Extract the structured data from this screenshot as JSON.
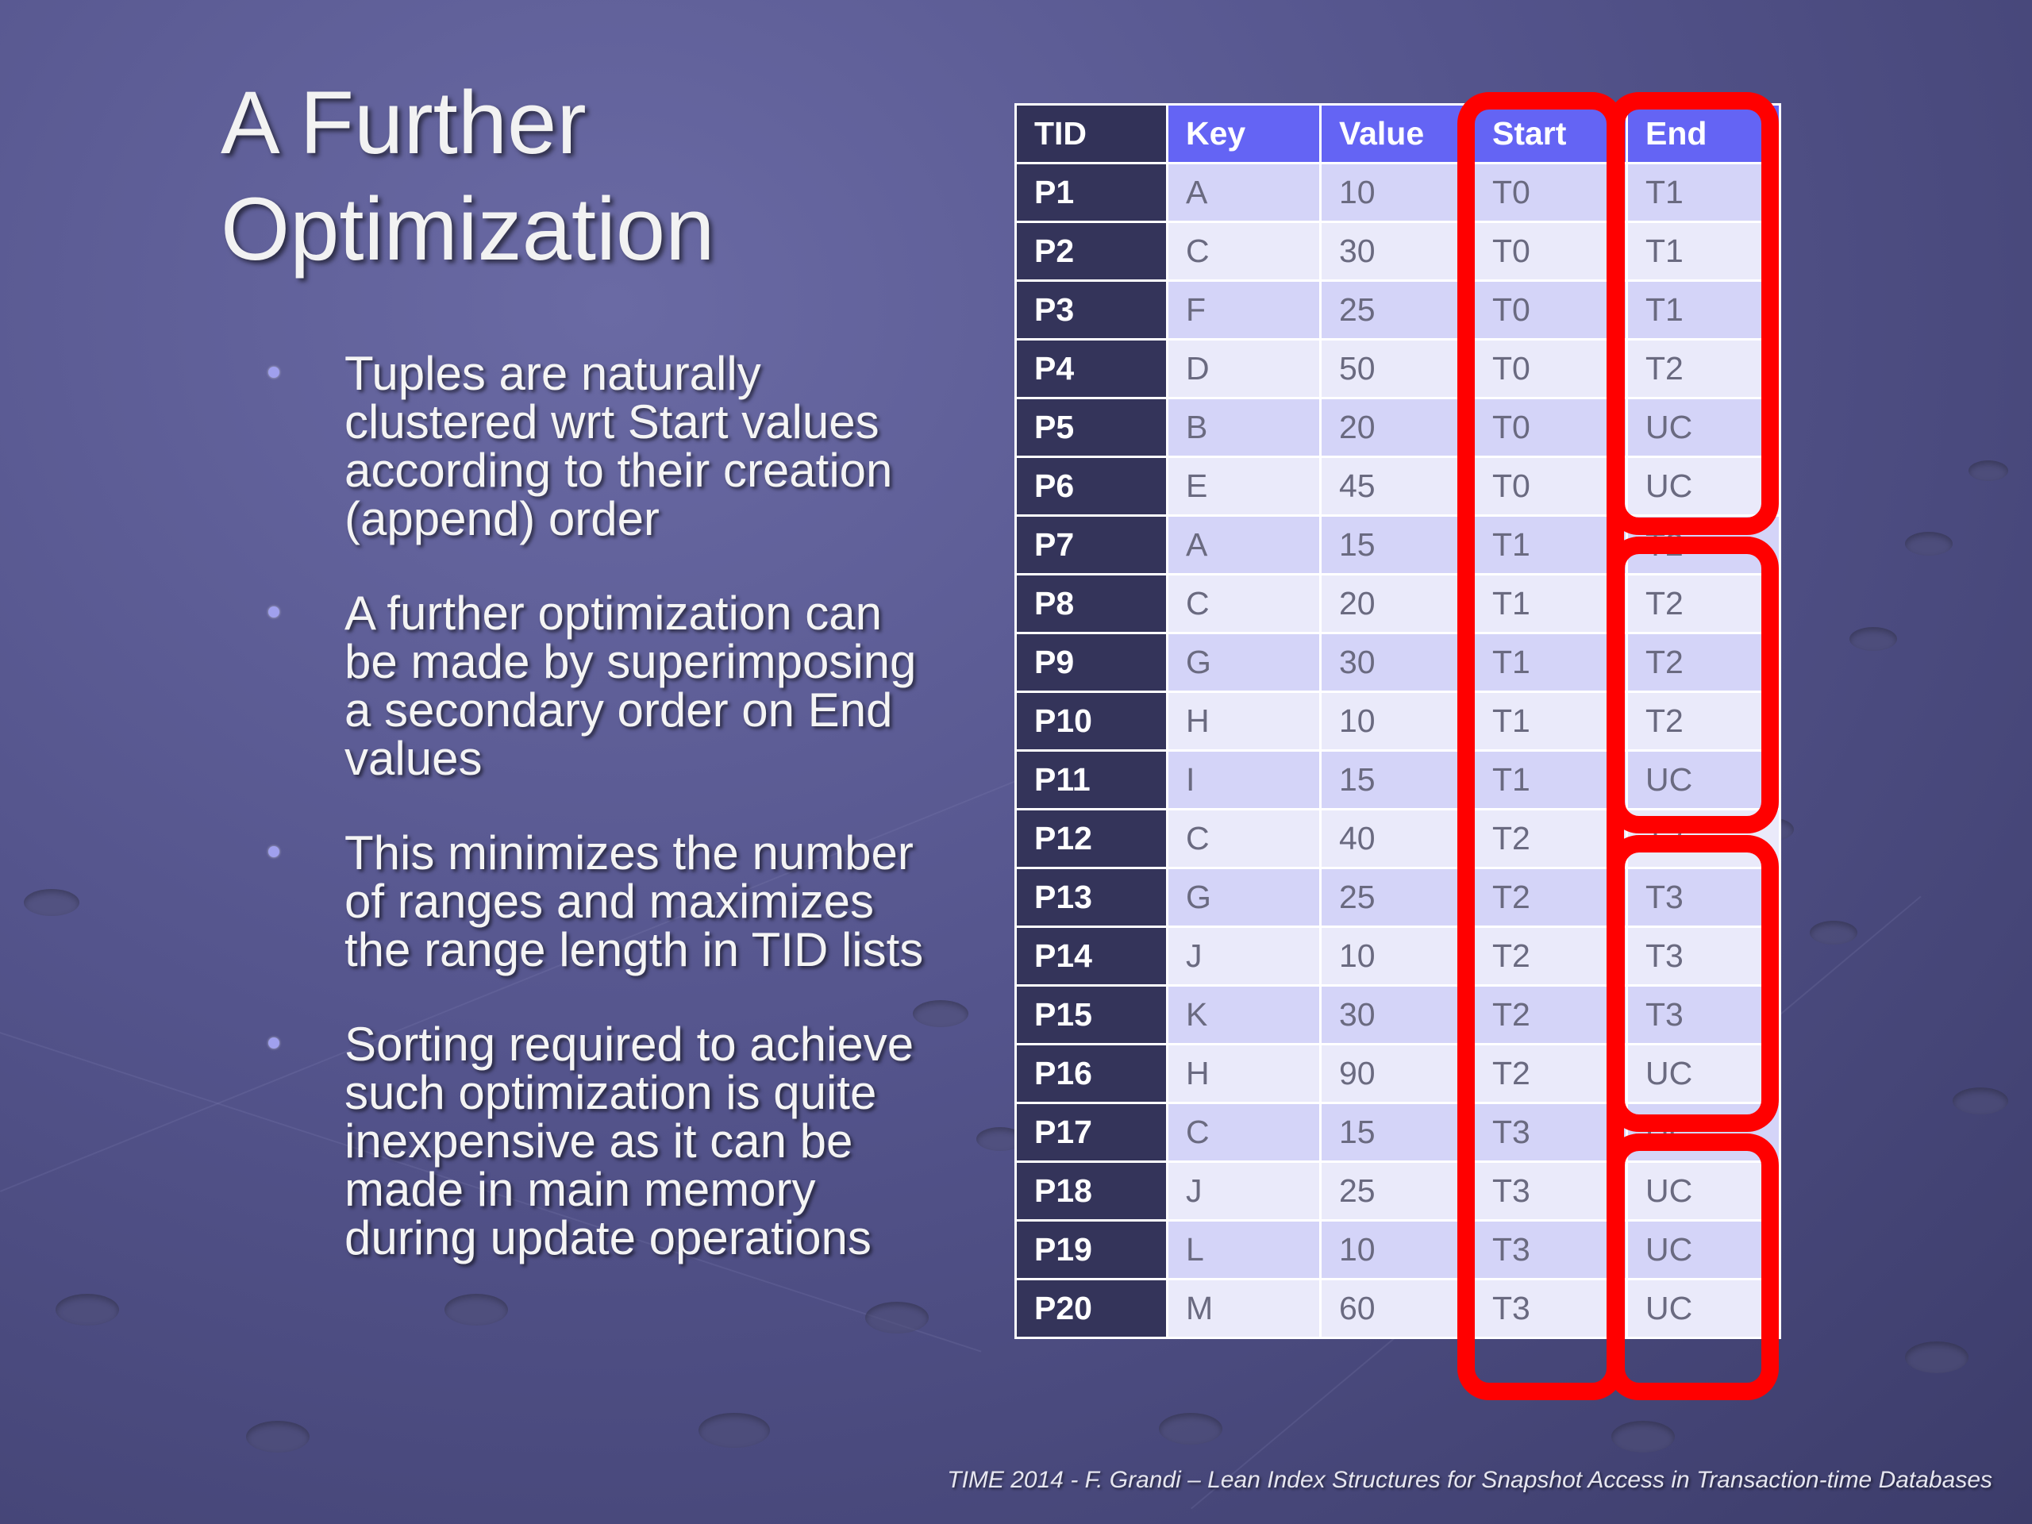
{
  "title": [
    "A Further",
    "Optimization"
  ],
  "bullets": [
    [
      "Tuples are naturally",
      "clustered wrt Start values",
      "according to their creation",
      "(append) order"
    ],
    [
      "A further optimization can",
      "be made by superimposing",
      "a secondary order on End",
      "values"
    ],
    [
      "This minimizes the number",
      "of ranges and maximizes",
      "the range length in TID lists"
    ],
    [
      "Sorting required to achieve",
      "such optimization is quite",
      "inexpensive as it can be",
      "made in main memory",
      "during update operations"
    ]
  ],
  "table": {
    "headers": [
      "TID",
      "Key",
      "Value",
      "Start",
      "End"
    ],
    "rows": [
      [
        "P1",
        "A",
        "10",
        "T0",
        "T1"
      ],
      [
        "P2",
        "C",
        "30",
        "T0",
        "T1"
      ],
      [
        "P3",
        "F",
        "25",
        "T0",
        "T1"
      ],
      [
        "P4",
        "D",
        "50",
        "T0",
        "T2"
      ],
      [
        "P5",
        "B",
        "20",
        "T0",
        "UC"
      ],
      [
        "P6",
        "E",
        "45",
        "T0",
        "UC"
      ],
      [
        "P7",
        "A",
        "15",
        "T1",
        "T2"
      ],
      [
        "P8",
        "C",
        "20",
        "T1",
        "T2"
      ],
      [
        "P9",
        "G",
        "30",
        "T1",
        "T2"
      ],
      [
        "P10",
        "H",
        "10",
        "T1",
        "T2"
      ],
      [
        "P11",
        "I",
        "15",
        "T1",
        "UC"
      ],
      [
        "P12",
        "C",
        "40",
        "T2",
        "T3"
      ],
      [
        "P13",
        "G",
        "25",
        "T2",
        "T3"
      ],
      [
        "P14",
        "J",
        "10",
        "T2",
        "T3"
      ],
      [
        "P15",
        "K",
        "30",
        "T2",
        "T3"
      ],
      [
        "P16",
        "H",
        "90",
        "T2",
        "UC"
      ],
      [
        "P17",
        "C",
        "15",
        "T3",
        "UC"
      ],
      [
        "P18",
        "J",
        "25",
        "T3",
        "UC"
      ],
      [
        "P19",
        "L",
        "10",
        "T3",
        "UC"
      ],
      [
        "P20",
        "M",
        "60",
        "T3",
        "UC"
      ]
    ]
  },
  "highlight_color": "#ff0000",
  "footer": "TIME 2014  -  F. Grandi – Lean Index Structures for Snapshot Access in Transaction-time Databases"
}
